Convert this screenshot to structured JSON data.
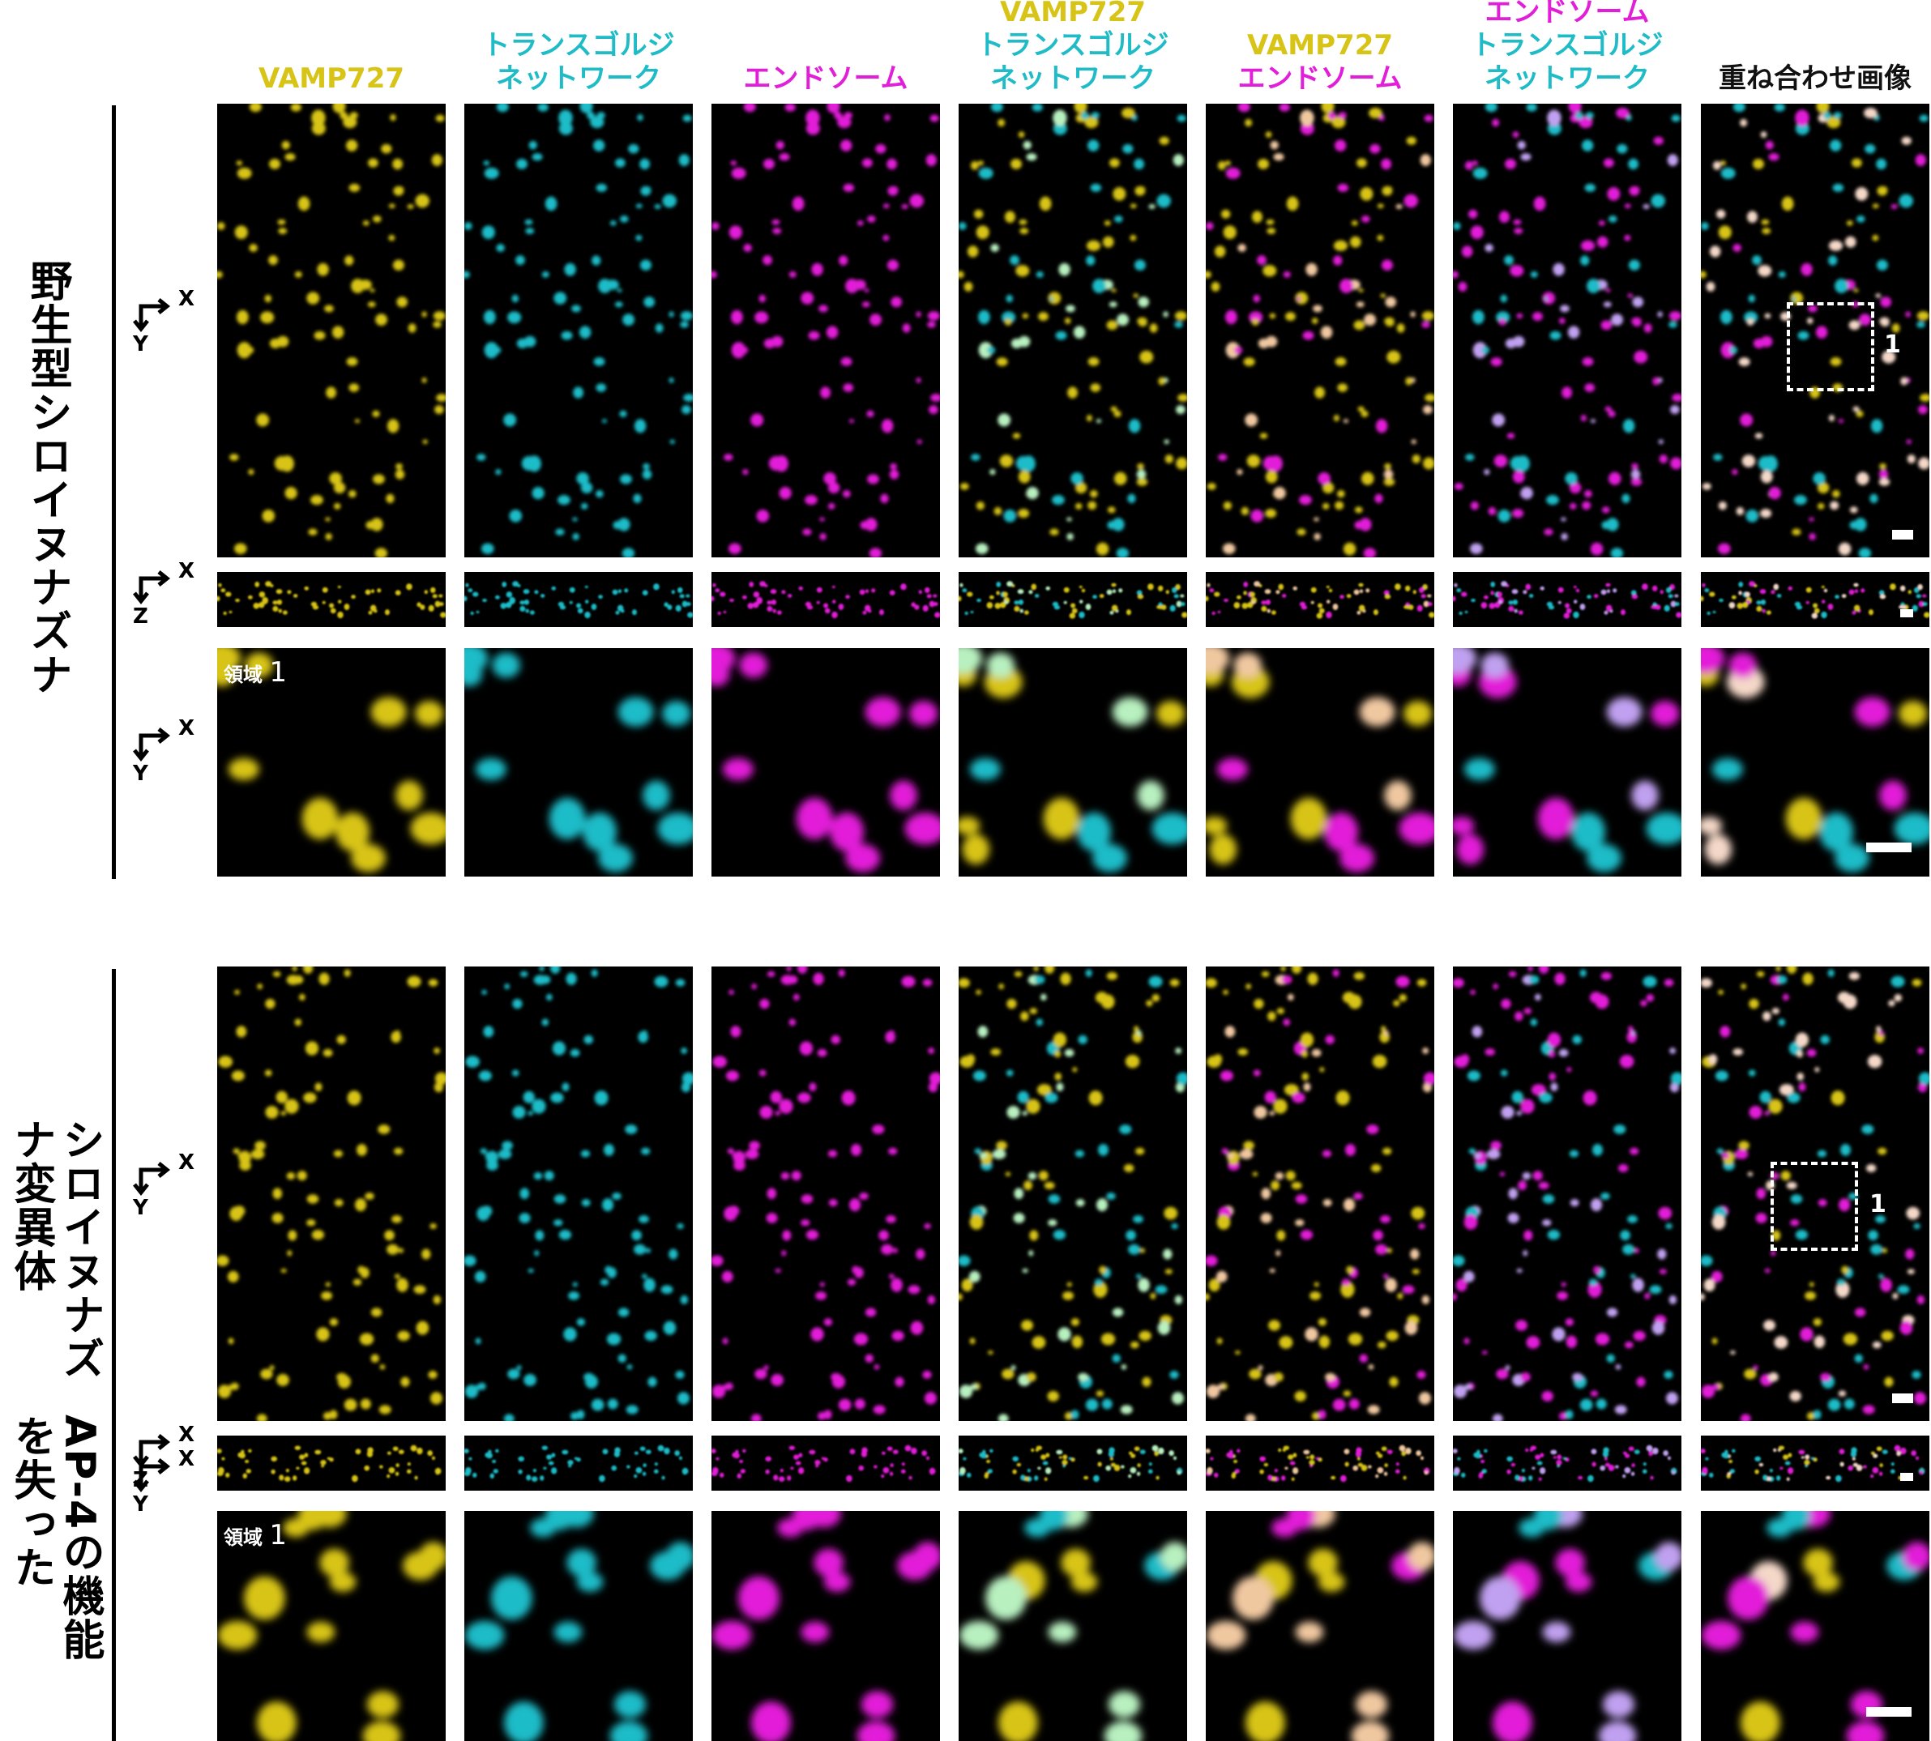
{
  "columns": [
    {
      "lines": [
        "VAMP727"
      ],
      "colors": [
        "yellow"
      ]
    },
    {
      "lines": [
        "トランスゴルジ",
        "ネットワーク"
      ],
      "colors": [
        "cyan",
        "cyan"
      ]
    },
    {
      "lines": [
        "エンドソーム"
      ],
      "colors": [
        "magenta"
      ]
    },
    {
      "lines": [
        "VAMP727",
        "トランスゴルジ",
        "ネットワーク"
      ],
      "colors": [
        "yellow",
        "cyan",
        "cyan"
      ]
    },
    {
      "lines": [
        "VAMP727",
        "エンドソーム"
      ],
      "colors": [
        "yellow",
        "magenta"
      ]
    },
    {
      "lines": [
        "エンドソーム",
        "トランスゴルジ",
        "ネットワーク"
      ],
      "colors": [
        "magenta",
        "cyan",
        "cyan"
      ]
    },
    {
      "lines": [
        "重ね合わせ画像"
      ],
      "colors": [
        "black"
      ]
    }
  ],
  "rows": [
    {
      "label_lines": [
        "野生型シロイヌナズナ"
      ],
      "region_label": "領域",
      "region_number": "1",
      "roi_number": "1"
    },
    {
      "label_lines": [
        "AP-4の機能を失った",
        "シロイヌナズナ変異体"
      ],
      "region_label": "領域",
      "region_number": "1",
      "roi_number": "1"
    }
  ],
  "axes": {
    "x": "X",
    "y": "Y",
    "z": "Z"
  },
  "colors": {
    "yellow": "#d8c416",
    "cyan": "#1fbcc8",
    "magenta": "#e21fd8",
    "merge_vy": "#f0c8a0",
    "merge_vc": "#b8f0c0",
    "merge_mc": "#c0a0f0",
    "merge_all": "#f4d8c8"
  }
}
